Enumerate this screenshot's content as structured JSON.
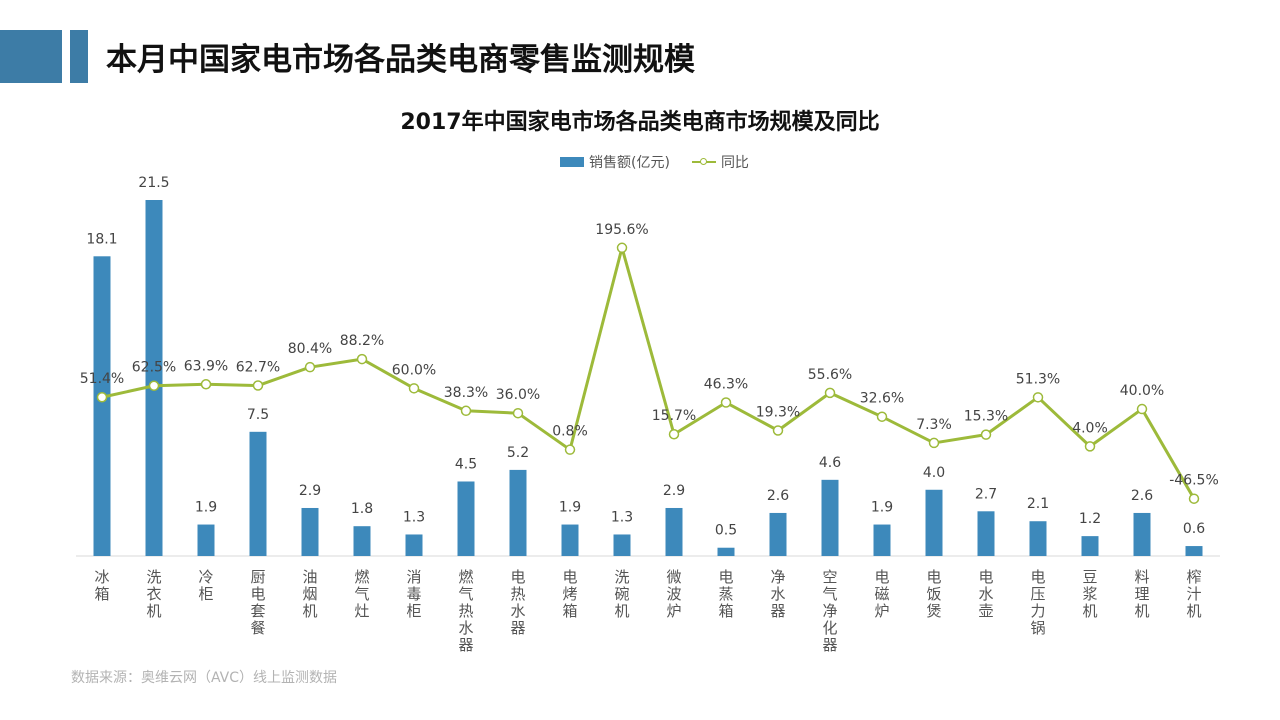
{
  "page": {
    "title": "本月中国家电市场各品类电商零售监测规模",
    "source": "数据来源：奥维云网（AVC）线上监测数据"
  },
  "colors": {
    "bar": "#3d89bb",
    "line": "#9dba3a",
    "accent": "#3d7ca6"
  },
  "chart_data": {
    "type": "bar",
    "title": "2017年中国家电市场各品类电商市场规模及同比",
    "legend_position": "top-center",
    "grid": false,
    "categories": [
      "冰箱",
      "洗衣机",
      "冷柜",
      "厨电套餐",
      "油烟机",
      "燃气灶",
      "消毒柜",
      "燃气热水器",
      "电热水器",
      "电烤箱",
      "洗碗机",
      "微波炉",
      "电蒸箱",
      "净水器",
      "空气净化器",
      "电磁炉",
      "电饭煲",
      "电水壶",
      "电压力锅",
      "豆浆机",
      "料理机",
      "榨汁机"
    ],
    "series": [
      {
        "name": "销售额(亿元)",
        "type": "bar",
        "values": [
          18.1,
          21.5,
          1.9,
          7.5,
          2.9,
          1.8,
          1.3,
          4.5,
          5.2,
          1.9,
          1.3,
          2.9,
          0.5,
          2.6,
          4.6,
          1.9,
          4.0,
          2.7,
          2.1,
          1.2,
          2.6,
          0.6
        ],
        "labels": [
          "18.1",
          "21.5",
          "1.9",
          "7.5",
          "2.9",
          "1.8",
          "1.3",
          "4.5",
          "5.2",
          "1.9",
          "1.3",
          "2.9",
          "0.5",
          "2.6",
          "4.6",
          "1.9",
          "4.0",
          "2.7",
          "2.1",
          "1.2",
          "2.6",
          "0.6"
        ]
      },
      {
        "name": "同比",
        "type": "line",
        "values": [
          51.4,
          62.5,
          63.9,
          62.7,
          80.4,
          88.2,
          60.0,
          38.3,
          36.0,
          0.8,
          195.6,
          15.7,
          46.3,
          19.3,
          55.6,
          32.6,
          7.3,
          15.3,
          51.3,
          4.0,
          40.0,
          -46.5
        ],
        "labels": [
          "51.4%",
          "62.5%",
          "63.9%",
          "62.7%",
          "80.4%",
          "88.2%",
          "60.0%",
          "38.3%",
          "36.0%",
          "0.8%",
          "195.6%",
          "15.7%",
          "46.3%",
          "19.3%",
          "55.6%",
          "32.6%",
          "7.3%",
          "15.3%",
          "51.3%",
          "4.0%",
          "40.0%",
          "-46.5%"
        ]
      }
    ]
  }
}
